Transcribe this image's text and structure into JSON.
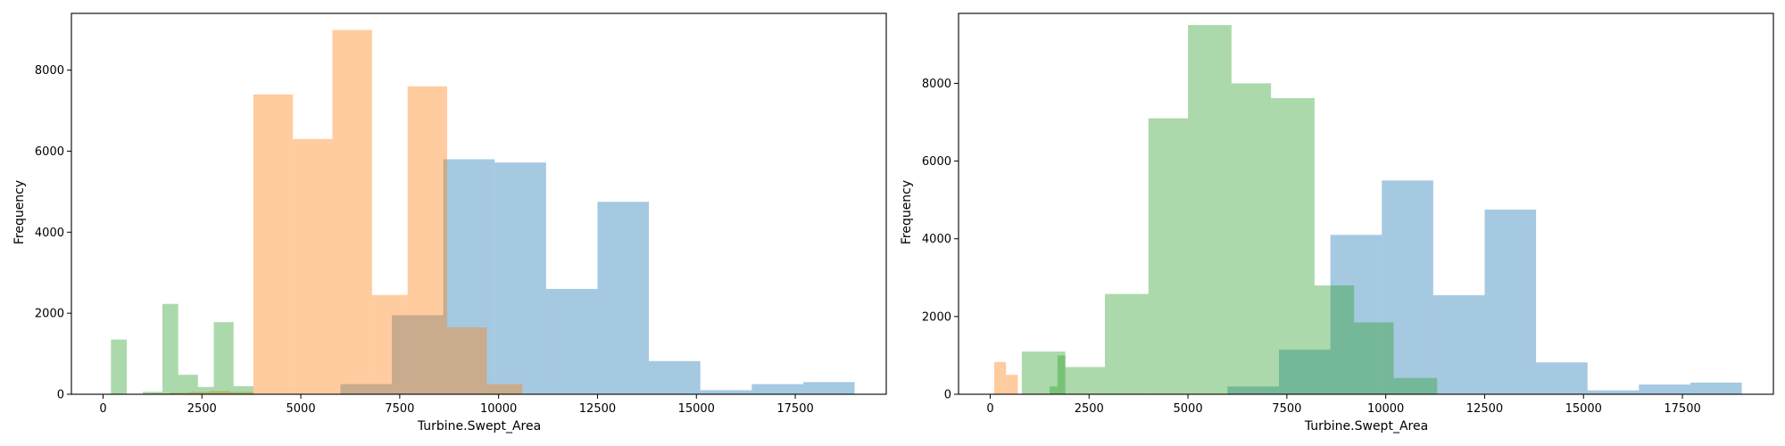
{
  "chart_data": [
    {
      "type": "histogram",
      "title": "",
      "xlabel": "Turbine.Swept_Area",
      "ylabel": "Frequency",
      "xlim": [
        -800,
        19800
      ],
      "ylim": [
        0,
        9400
      ],
      "xticks": [
        0,
        2500,
        5000,
        7500,
        10000,
        12500,
        15000,
        17500
      ],
      "xtick_labels": [
        "0",
        "2500",
        "5000",
        "7500",
        "10000",
        "12500",
        "15000",
        "17500"
      ],
      "yticks": [
        0,
        2000,
        4000,
        6000,
        8000
      ],
      "ytick_labels": [
        "0",
        "2000",
        "4000",
        "6000",
        "8000"
      ],
      "grid": false,
      "series": [
        {
          "color": "#1f77b4",
          "opacity": 0.4,
          "bins": [
            {
              "x0": 6000,
              "x1": 7300,
              "y": 250
            },
            {
              "x0": 7300,
              "x1": 8600,
              "y": 1950
            },
            {
              "x0": 8600,
              "x1": 9900,
              "y": 5800
            },
            {
              "x0": 9900,
              "x1": 11200,
              "y": 5720
            },
            {
              "x0": 11200,
              "x1": 12500,
              "y": 2600
            },
            {
              "x0": 12500,
              "x1": 13800,
              "y": 4750
            },
            {
              "x0": 13800,
              "x1": 15100,
              "y": 820
            },
            {
              "x0": 15100,
              "x1": 16400,
              "y": 100
            },
            {
              "x0": 16400,
              "x1": 17700,
              "y": 250
            },
            {
              "x0": 17700,
              "x1": 19000,
              "y": 300
            }
          ]
        },
        {
          "color": "#ff7f0e",
          "opacity": 0.4,
          "bins": [
            {
              "x0": 700,
              "x1": 1200,
              "y": 10
            },
            {
              "x0": 1200,
              "x1": 1700,
              "y": 20
            },
            {
              "x0": 1700,
              "x1": 2200,
              "y": 40
            },
            {
              "x0": 2200,
              "x1": 2700,
              "y": 60
            },
            {
              "x0": 2700,
              "x1": 3200,
              "y": 80
            },
            {
              "x0": 3200,
              "x1": 3800,
              "y": 60
            },
            {
              "x0": 3800,
              "x1": 4800,
              "y": 7400
            },
            {
              "x0": 4800,
              "x1": 5800,
              "y": 6300
            },
            {
              "x0": 5800,
              "x1": 6800,
              "y": 8990
            },
            {
              "x0": 6800,
              "x1": 7700,
              "y": 2450
            },
            {
              "x0": 7700,
              "x1": 8700,
              "y": 7600
            },
            {
              "x0": 8700,
              "x1": 9700,
              "y": 1650
            },
            {
              "x0": 9700,
              "x1": 10600,
              "y": 250
            }
          ]
        },
        {
          "color": "#2ca02c",
          "opacity": 0.4,
          "bins": [
            {
              "x0": 200,
              "x1": 600,
              "y": 1350
            },
            {
              "x0": 600,
              "x1": 1000,
              "y": 0
            },
            {
              "x0": 1000,
              "x1": 1500,
              "y": 60
            },
            {
              "x0": 1500,
              "x1": 1900,
              "y": 2230
            },
            {
              "x0": 1900,
              "x1": 2400,
              "y": 480
            },
            {
              "x0": 2400,
              "x1": 2800,
              "y": 180
            },
            {
              "x0": 2800,
              "x1": 3300,
              "y": 1780
            },
            {
              "x0": 3300,
              "x1": 3800,
              "y": 200
            }
          ]
        }
      ]
    },
    {
      "type": "histogram",
      "title": "",
      "xlabel": "Turbine.Swept_Area",
      "ylabel": "Frequency",
      "xlim": [
        -800,
        19800
      ],
      "ylim": [
        0,
        9800
      ],
      "xticks": [
        0,
        2500,
        5000,
        7500,
        10000,
        12500,
        15000,
        17500
      ],
      "xtick_labels": [
        "0",
        "2500",
        "5000",
        "7500",
        "10000",
        "12500",
        "15000",
        "17500"
      ],
      "yticks": [
        0,
        2000,
        4000,
        6000,
        8000
      ],
      "ytick_labels": [
        "0",
        "2000",
        "4000",
        "6000",
        "8000"
      ],
      "grid": false,
      "series": [
        {
          "color": "#1f77b4",
          "opacity": 0.4,
          "bins": [
            {
              "x0": 6000,
              "x1": 7300,
              "y": 200
            },
            {
              "x0": 7300,
              "x1": 8600,
              "y": 1150
            },
            {
              "x0": 8600,
              "x1": 9900,
              "y": 4100
            },
            {
              "x0": 9900,
              "x1": 11200,
              "y": 5500
            },
            {
              "x0": 11200,
              "x1": 12500,
              "y": 2550
            },
            {
              "x0": 12500,
              "x1": 13800,
              "y": 4750
            },
            {
              "x0": 13800,
              "x1": 15100,
              "y": 820
            },
            {
              "x0": 15100,
              "x1": 16400,
              "y": 100
            },
            {
              "x0": 16400,
              "x1": 17700,
              "y": 250
            },
            {
              "x0": 17700,
              "x1": 19000,
              "y": 300
            }
          ]
        },
        {
          "color": "#ff7f0e",
          "opacity": 0.4,
          "bins": [
            {
              "x0": 100,
              "x1": 400,
              "y": 830
            },
            {
              "x0": 400,
              "x1": 700,
              "y": 500
            }
          ]
        },
        {
          "color": "#2ca02c",
          "opacity": 0.4,
          "bins": [
            {
              "x0": 800,
              "x1": 1900,
              "y": 1100
            },
            {
              "x0": 1900,
              "x1": 2900,
              "y": 700
            },
            {
              "x0": 2900,
              "x1": 4000,
              "y": 2580
            },
            {
              "x0": 4000,
              "x1": 5000,
              "y": 7100
            },
            {
              "x0": 5000,
              "x1": 6100,
              "y": 9500
            },
            {
              "x0": 6100,
              "x1": 7100,
              "y": 8000
            },
            {
              "x0": 7100,
              "x1": 8200,
              "y": 7620
            },
            {
              "x0": 8200,
              "x1": 9200,
              "y": 2800
            },
            {
              "x0": 9200,
              "x1": 10200,
              "y": 1850
            },
            {
              "x0": 10200,
              "x1": 11300,
              "y": 420
            }
          ]
        },
        {
          "color": "#2ca02c",
          "opacity": 0.4,
          "bins": [
            {
              "x0": 1500,
              "x1": 1700,
              "y": 200
            },
            {
              "x0": 1700,
              "x1": 1900,
              "y": 1000
            }
          ]
        }
      ]
    }
  ]
}
